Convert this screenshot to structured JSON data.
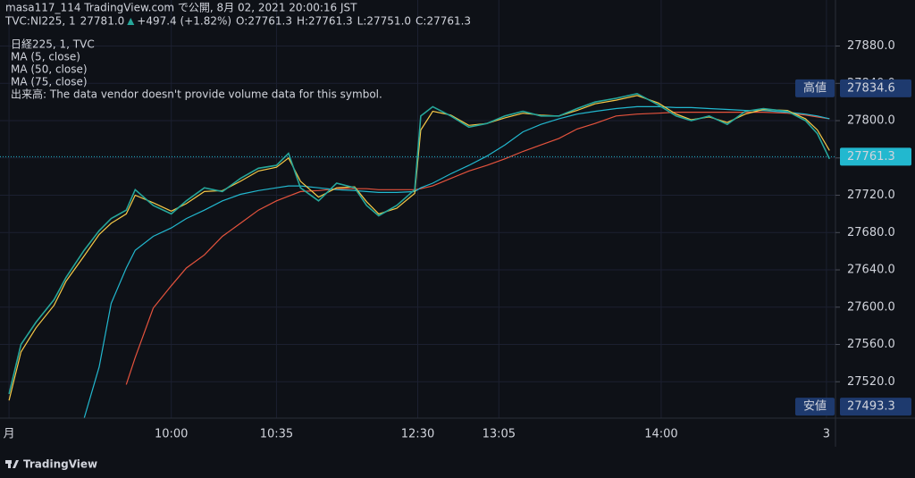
{
  "header": {
    "publisher": "masa117_114 TradingView.com で公開, 8月 02, 2021 20:00:16 JST",
    "symbol": "TVC:NI225, 1",
    "last": "27781.0",
    "change": "+497.4 (+1.82%)",
    "ohlc": [
      [
        "O:",
        "27761.3"
      ],
      [
        "H:",
        "27761.3"
      ],
      [
        "L:",
        "27751.0"
      ],
      [
        "C:",
        "27761.3"
      ]
    ]
  },
  "footer": {
    "brand": "TradingView"
  },
  "chart_data": {
    "type": "line",
    "annotation": "出来高: The data vendor doesn't provide volume data for this symbol.",
    "x": [
      0,
      4,
      9,
      15,
      19,
      25,
      30,
      34,
      39,
      42,
      48,
      54,
      59,
      65,
      71,
      77,
      83,
      89,
      93,
      97,
      103,
      109,
      115,
      119,
      123,
      129,
      135,
      137,
      141,
      147,
      153,
      159,
      165,
      171,
      177,
      183,
      189,
      195,
      202,
      209,
      216,
      222,
      227,
      233,
      239,
      245,
      251,
      259,
      265,
      269,
      273
    ],
    "series": [
      {
        "name": "日経225, 1, TVC",
        "color": "#26a69a",
        "values": [
          27507,
          27560,
          27584,
          27608,
          27632,
          27661,
          27682,
          27695,
          27704,
          27726,
          27709,
          27700,
          27714,
          27728,
          27724,
          27738,
          27749,
          27752,
          27765,
          27728,
          27714,
          27733,
          27728,
          27709,
          27698,
          27709,
          27726,
          27805,
          27815,
          27805,
          27793,
          27797,
          27805,
          27810,
          27805,
          27805,
          27813,
          27820,
          27824,
          27829,
          27817,
          27805,
          27800,
          27805,
          27796,
          27810,
          27813,
          27810,
          27800,
          27786,
          27759
        ]
      },
      {
        "name": "MA (5, close)",
        "color": "#f7c948",
        "values": [
          27500,
          27552,
          27578,
          27602,
          27628,
          27655,
          27678,
          27690,
          27700,
          27720,
          27712,
          27703,
          27711,
          27724,
          27725,
          27735,
          27746,
          27750,
          27760,
          27735,
          27718,
          27728,
          27729,
          27713,
          27700,
          27706,
          27722,
          27790,
          27810,
          27806,
          27795,
          27797,
          27803,
          27808,
          27806,
          27805,
          27811,
          27818,
          27822,
          27827,
          27819,
          27807,
          27801,
          27804,
          27798,
          27807,
          27812,
          27811,
          27802,
          27790,
          27768
        ]
      },
      {
        "name": "MA (50, close)",
        "color": "#22b8cf",
        "values": [
          null,
          null,
          null,
          null,
          null,
          27481,
          27536,
          27604,
          27642,
          27661,
          27676,
          27685,
          27695,
          27704,
          27714,
          27721,
          27725,
          27728,
          27730,
          27730,
          27728,
          27726,
          27725,
          27724,
          27723,
          27723,
          27724,
          27728,
          27733,
          27743,
          27752,
          27762,
          27774,
          27788,
          27796,
          27802,
          27807,
          27810,
          27813,
          27815,
          27815,
          27814,
          27814,
          27813,
          27812,
          27811,
          27811,
          27809,
          27807,
          27805,
          27802
        ]
      },
      {
        "name": "MA (75, close)",
        "color": "#e5533d",
        "values": [
          null,
          null,
          null,
          null,
          null,
          null,
          null,
          null,
          27517,
          27546,
          27599,
          27623,
          27642,
          27656,
          27676,
          27690,
          27704,
          27714,
          27719,
          27724,
          27725,
          27727,
          27727,
          27727,
          27726,
          27726,
          27726,
          27727,
          27730,
          27738,
          27746,
          27752,
          27759,
          27767,
          27774,
          27781,
          27791,
          27797,
          27805,
          27807,
          27808,
          27809,
          27809,
          27809,
          27809,
          27809,
          27809,
          27808,
          27806,
          27804,
          27802
        ]
      }
    ],
    "xlim": [
      -3,
      275
    ],
    "xticks": [
      {
        "value": 0,
        "label": "月"
      },
      {
        "value": 54,
        "label": "10:00"
      },
      {
        "value": 89,
        "label": "10:35"
      },
      {
        "value": 136,
        "label": "12:30"
      },
      {
        "value": 163,
        "label": "13:05"
      },
      {
        "value": 217,
        "label": "14:00"
      },
      {
        "value": 272,
        "label": "3"
      }
    ],
    "ylim": [
      27481,
      27915
    ],
    "yticks": [
      {
        "value": 27520,
        "label": "27520.0"
      },
      {
        "value": 27560,
        "label": "27560.0"
      },
      {
        "value": 27600,
        "label": "27600.0"
      },
      {
        "value": 27640,
        "label": "27640.0"
      },
      {
        "value": 27680,
        "label": "27680.0"
      },
      {
        "value": 27720,
        "label": "27720.0"
      },
      {
        "value": 27760,
        "label": "27760.0"
      },
      {
        "value": 27800,
        "label": "27800.0"
      },
      {
        "value": 27840,
        "label": "27840.0"
      },
      {
        "value": 27880,
        "label": "27880.0"
      }
    ],
    "grid": true,
    "price_markers": [
      {
        "name": "高値",
        "value": 27834.6,
        "label": "27834.6",
        "color": "#1e3a6e"
      },
      {
        "name": "安値",
        "value": 27493.3,
        "label": "27493.3",
        "color": "#1e3a6e"
      }
    ],
    "last_price": {
      "value": 27761.3,
      "label": "27761.3",
      "color": "#22b8cf"
    }
  }
}
